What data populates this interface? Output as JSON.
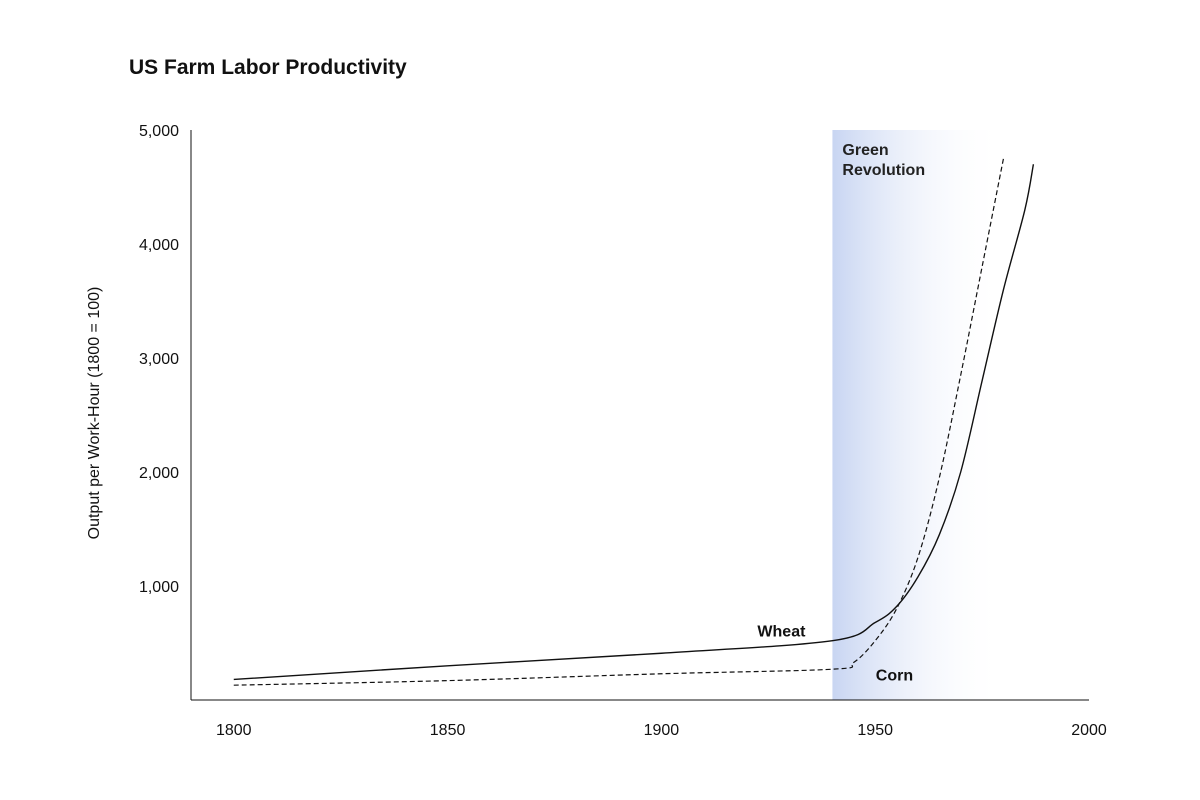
{
  "chart_data": {
    "type": "line",
    "title": "US Farm Labor Productivity",
    "xlabel": "",
    "ylabel": "Output per Work-Hour (1800 = 100)",
    "xlim": [
      1790,
      2000
    ],
    "ylim": [
      0,
      5000
    ],
    "x_ticks": [
      1800,
      1850,
      1900,
      1950,
      2000
    ],
    "x_tick_labels": [
      "1800",
      "1850",
      "1900",
      "1950",
      "2000"
    ],
    "y_ticks": [
      1000,
      2000,
      3000,
      4000,
      5000
    ],
    "y_tick_labels": [
      "1,000",
      "2,000",
      "3,000",
      "4,000",
      "5,000"
    ],
    "grid": false,
    "legend": "none",
    "series": [
      {
        "name": "Wheat",
        "style": "solid",
        "color": "#111111",
        "x": [
          1800,
          1850,
          1900,
          1940,
          1950,
          1955,
          1960,
          1965,
          1970,
          1975,
          1980,
          1985,
          1987
        ],
        "y": [
          180,
          300,
          410,
          520,
          680,
          820,
          1080,
          1450,
          2000,
          2800,
          3600,
          4300,
          4700
        ]
      },
      {
        "name": "Corn",
        "style": "dashed",
        "color": "#111111",
        "x": [
          1800,
          1850,
          1900,
          1940,
          1945,
          1950,
          1955,
          1960,
          1965,
          1970,
          1975,
          1980
        ],
        "y": [
          130,
          170,
          230,
          270,
          330,
          520,
          800,
          1250,
          1950,
          2850,
          3800,
          4750
        ]
      }
    ],
    "annotations": [
      {
        "type": "band",
        "x_start": 1940,
        "x_end": 1980,
        "label_lines": [
          "Green",
          "Revolution"
        ],
        "color": "#c8d5f2"
      }
    ],
    "series_labels": [
      {
        "text": "Wheat",
        "series": "Wheat"
      },
      {
        "text": "Corn",
        "series": "Corn"
      }
    ]
  }
}
